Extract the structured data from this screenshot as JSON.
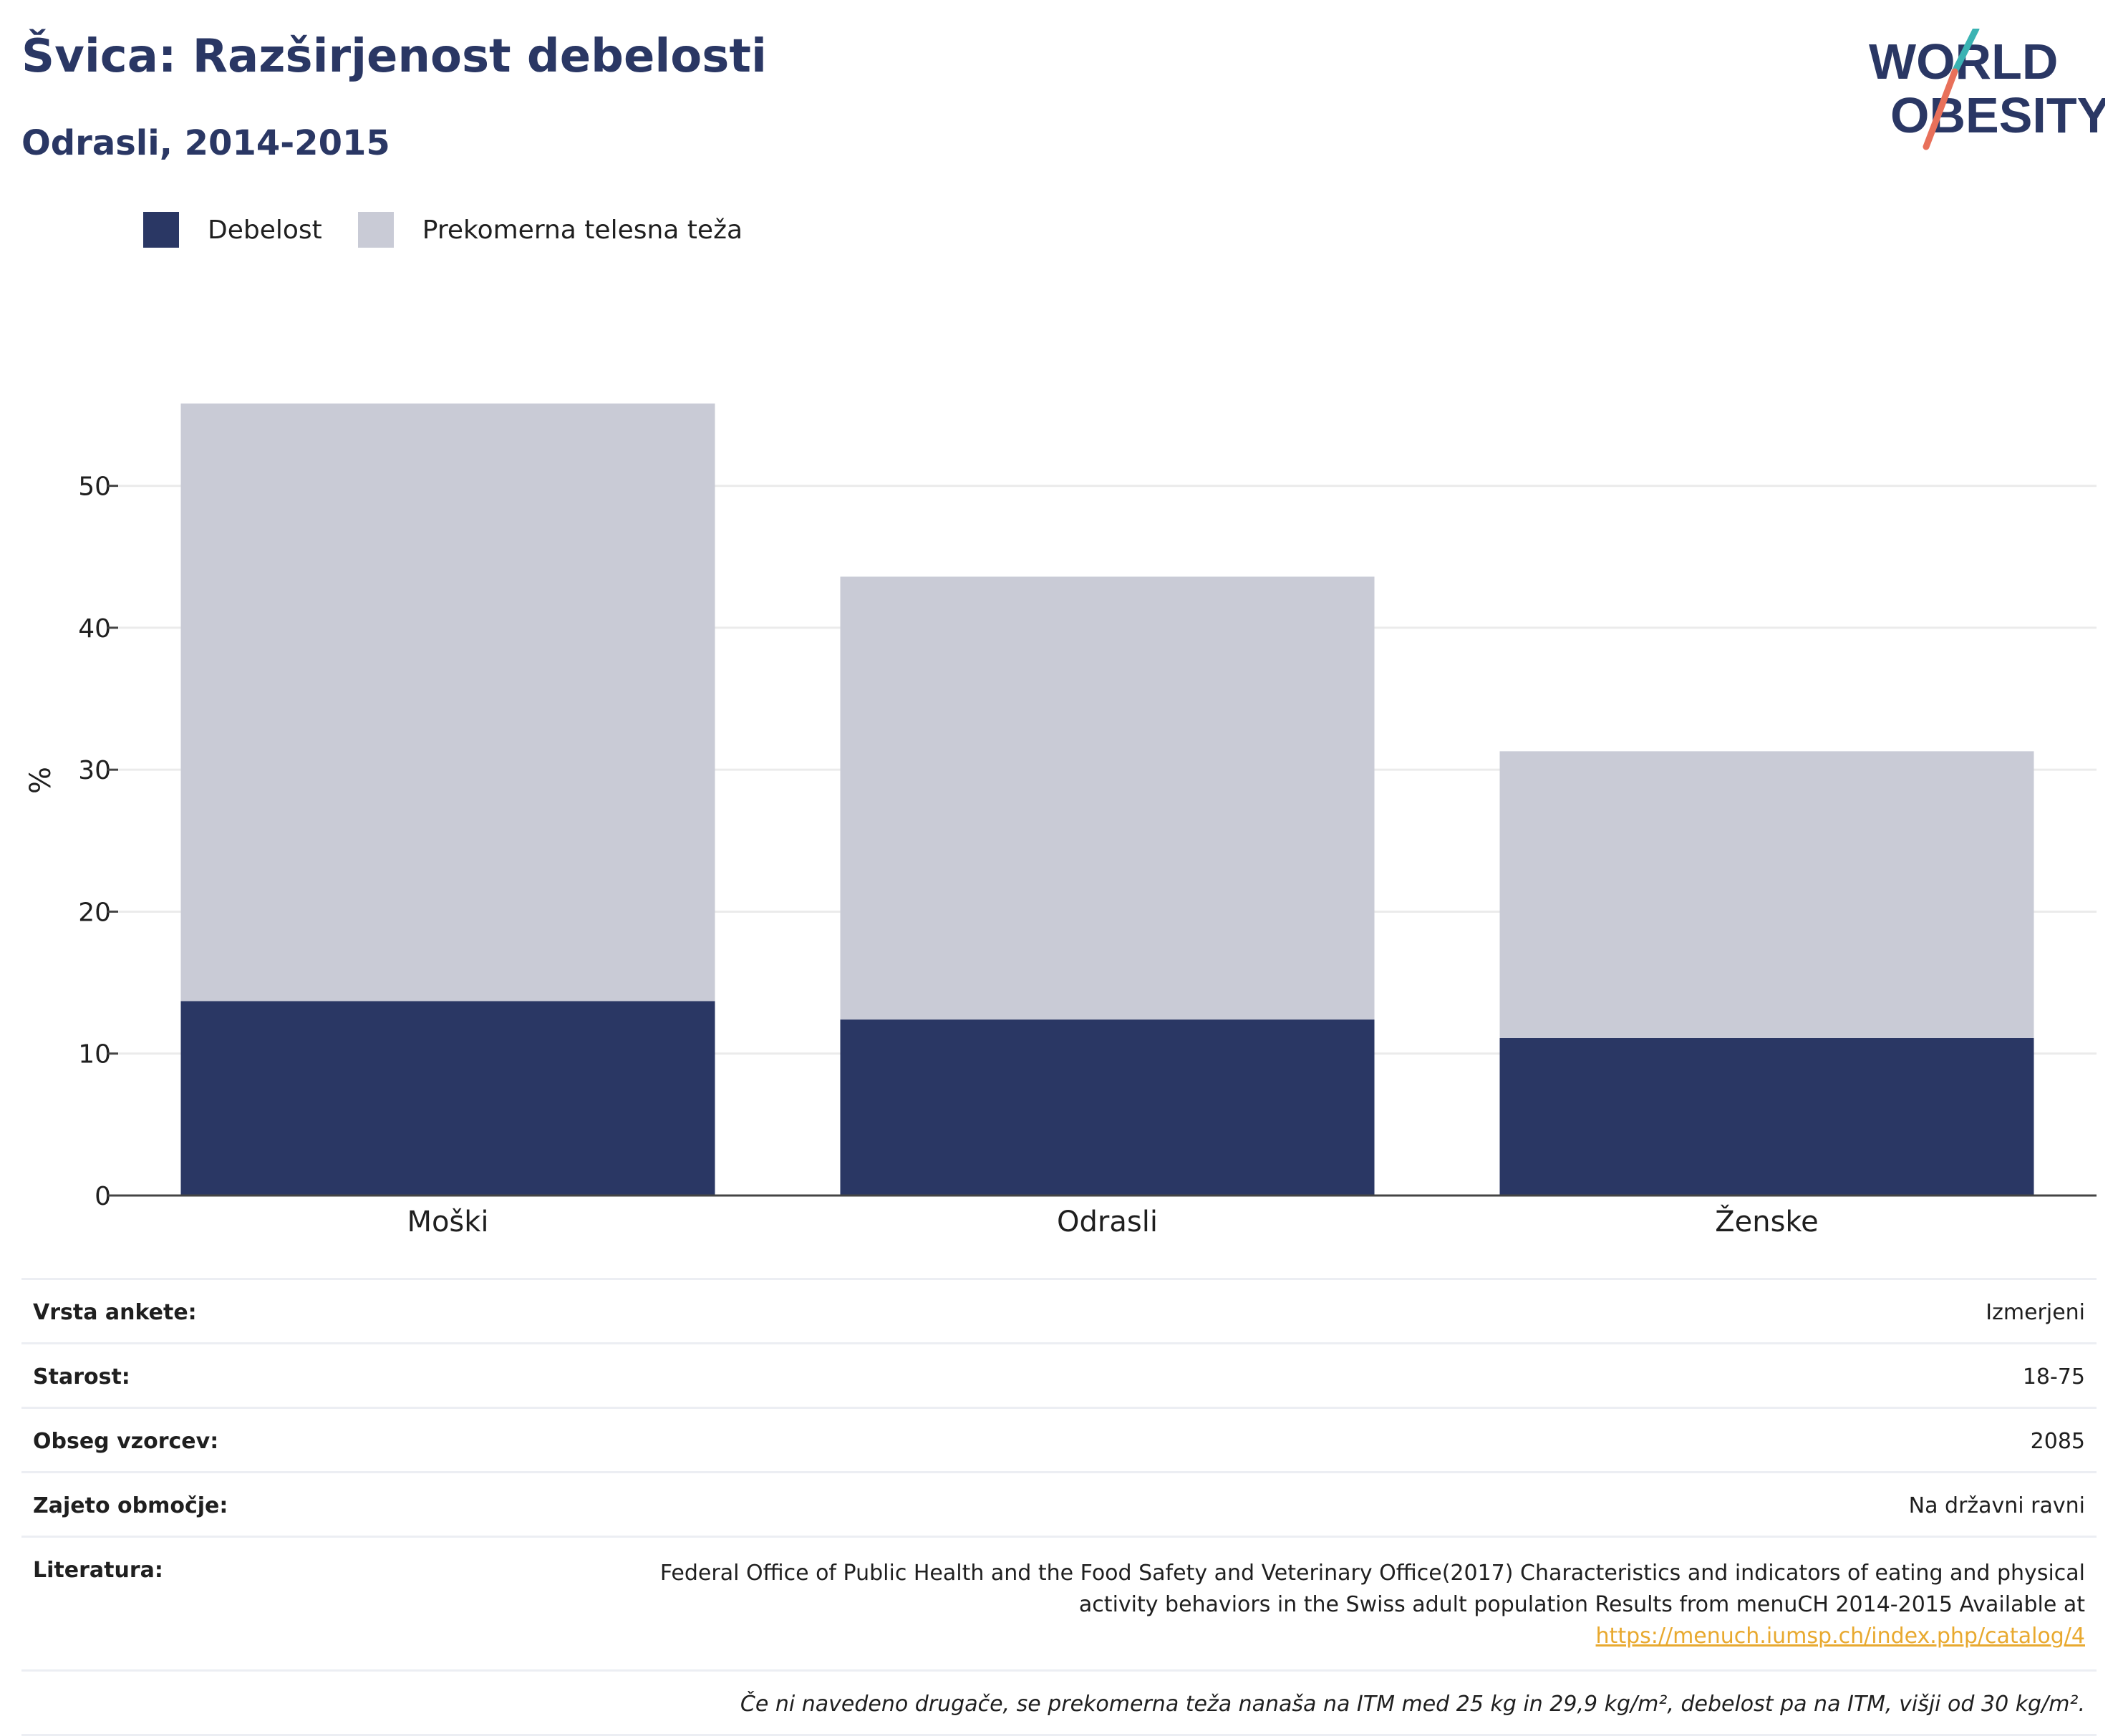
{
  "header": {
    "title": "Švica: Razširjenost debelosti",
    "subtitle": "Odrasli, 2014-2015"
  },
  "logo": {
    "line1": "WORLD",
    "line2": "OBESITY",
    "colors": {
      "text": "#2a3764",
      "slash_teal": "#3bb3b3",
      "slash_coral": "#e8705a"
    }
  },
  "legend": [
    {
      "label": "Debelost",
      "color": "#2a3764"
    },
    {
      "label": "Prekomerna telesna teža",
      "color": "#c9cbd6"
    }
  ],
  "chart_data": {
    "type": "bar",
    "stacked": true,
    "categories": [
      "Moški",
      "Odrasli",
      "Ženske"
    ],
    "series": [
      {
        "name": "Debelost",
        "values": [
          13.7,
          12.4,
          11.1
        ],
        "color": "#2a3764"
      },
      {
        "name": "Prekomerna telesna teža",
        "values": [
          42.1,
          31.2,
          20.2
        ],
        "color": "#c9cbd6"
      }
    ],
    "ylabel": "%",
    "xlabel": "",
    "ylim": [
      0,
      58
    ],
    "yticks": [
      0,
      10,
      20,
      30,
      40,
      50
    ],
    "grid": true,
    "legend_position": "top-left"
  },
  "info": {
    "survey_label": "Vrsta ankete:",
    "survey_value": "Izmerjeni",
    "age_label": "Starost:",
    "age_value": "18-75",
    "sample_label": "Obseg vzorcev:",
    "sample_value": "2085",
    "area_label": "Zajeto območje:",
    "area_value": "Na državni ravni",
    "ref_label": "Literatura:",
    "ref_line1": "Federal Office of Public Health and the Food Safety and Veterinary Office(2017) Characteristics and indicators of eating and physical",
    "ref_line2": "activity behaviors in the Swiss adult population Results from menuCH 2014-2015 Available at",
    "ref_link": "https://menuch.iumsp.ch/index.php/catalog/4",
    "note": "Če ni navedeno drugače, se prekomerna teža nanaša na ITM med 25 kg in 29,9 kg/m², debelost pa na ITM, višji od 30 kg/m²."
  }
}
